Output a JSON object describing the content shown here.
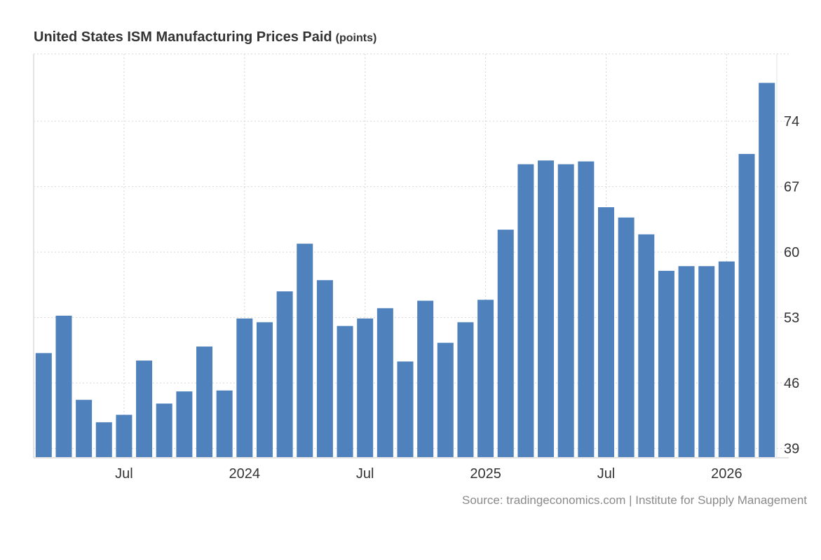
{
  "chart_data": {
    "type": "bar",
    "title": "United States ISM Manufacturing Prices Paid",
    "unit_label": "(points)",
    "source": "Source: tradingeconomics.com | Institute for Supply Management",
    "categories": [
      "Mar 2023",
      "Apr 2023",
      "May 2023",
      "Jun 2023",
      "Jul 2023",
      "Aug 2023",
      "Sep 2023",
      "Oct 2023",
      "Nov 2023",
      "Dec 2023",
      "Jan 2024",
      "Feb 2024",
      "Mar 2024",
      "Apr 2024",
      "May 2024",
      "Jun 2024",
      "Jul 2024",
      "Aug 2024",
      "Sep 2024",
      "Oct 2024",
      "Nov 2024",
      "Dec 2024",
      "Jan 2025",
      "Feb 2025",
      "Mar 2025",
      "Apr 2025",
      "May 2025",
      "Jun 2025",
      "Jul 2025",
      "Aug 2025",
      "Sep 2025",
      "Oct 2025",
      "Nov 2025",
      "Dec 2025",
      "Jan 2026",
      "Feb 2026",
      "Mar 2026"
    ],
    "values": [
      49.2,
      53.2,
      44.2,
      41.8,
      42.6,
      48.4,
      43.8,
      45.1,
      49.9,
      45.2,
      52.9,
      52.5,
      55.8,
      60.9,
      57.0,
      52.1,
      52.9,
      54.0,
      48.3,
      54.8,
      50.3,
      52.5,
      54.9,
      62.4,
      69.4,
      69.8,
      69.4,
      69.7,
      64.8,
      63.7,
      61.9,
      58.0,
      58.5,
      58.5,
      59.0,
      70.5,
      78.1
    ],
    "xlabel": "",
    "ylabel": "",
    "ylim": [
      38,
      81.2
    ],
    "y_ticks": [
      39,
      46,
      53,
      60,
      67,
      74
    ],
    "x_ticks": [
      {
        "label": "Jul",
        "index": 4
      },
      {
        "label": "2024",
        "index": 10
      },
      {
        "label": "Jul",
        "index": 16
      },
      {
        "label": "2025",
        "index": 22
      },
      {
        "label": "Jul",
        "index": 28
      },
      {
        "label": "2026",
        "index": 34
      }
    ],
    "y_axis_position": "right",
    "grid": true,
    "bar_color": "#4f81bd"
  }
}
